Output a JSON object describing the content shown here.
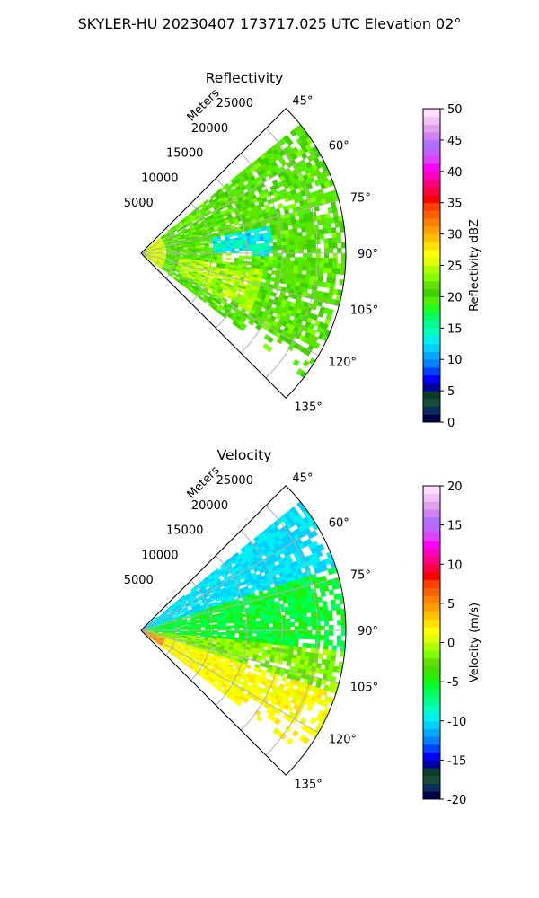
{
  "figure": {
    "title": "SKYLER-HU  20230407  173717.025 UTC Elevation 02°"
  },
  "chart_data": [
    {
      "type": "heatmap",
      "title": "Reflectivity",
      "azimuth_range_deg": [
        45,
        135
      ],
      "azimuth_tick_labels": [
        "45°",
        "60°",
        "75°",
        "90°",
        "105°",
        "120°",
        "135°"
      ],
      "range_unit_label": "Meters",
      "range_tick_labels": [
        "5000",
        "10000",
        "15000",
        "20000",
        "25000"
      ],
      "range_ticks_m": [
        5000,
        10000,
        15000,
        20000,
        25000
      ],
      "max_range_m": 29000,
      "colorbar": {
        "label": "Reflectivity dBZ",
        "range": [
          0,
          50
        ],
        "tick_labels": [
          "0",
          "5",
          "10",
          "15",
          "20",
          "25",
          "30",
          "35",
          "40",
          "45",
          "50"
        ],
        "colors": [
          "#00004c",
          "#0a2f5c",
          "#1a4a3a",
          "#0c3c2a",
          "#0000a0",
          "#0000ff",
          "#0040ff",
          "#0080ff",
          "#00a8ff",
          "#00d0ff",
          "#00f0f0",
          "#00ffc0",
          "#00ff90",
          "#00ff60",
          "#20ff20",
          "#50f000",
          "#40d000",
          "#60e000",
          "#80ff00",
          "#b0ff00",
          "#e0ff00",
          "#ffff00",
          "#ffe000",
          "#ffc000",
          "#ffa000",
          "#ff8000",
          "#ff6000",
          "#ff4000",
          "#ff0000",
          "#ff0040",
          "#ff0080",
          "#ff00c0",
          "#ff00ff",
          "#e040ff",
          "#c060ff",
          "#b070ff",
          "#d080f0",
          "#e0a0f0",
          "#f0c0f8",
          "#ffe0ff"
        ]
      }
    },
    {
      "type": "heatmap",
      "title": "Velocity",
      "azimuth_range_deg": [
        45,
        135
      ],
      "azimuth_tick_labels": [
        "45°",
        "60°",
        "75°",
        "90°",
        "105°",
        "120°",
        "135°"
      ],
      "range_unit_label": "Meters",
      "range_tick_labels": [
        "5000",
        "10000",
        "15000",
        "20000",
        "25000"
      ],
      "range_ticks_m": [
        5000,
        10000,
        15000,
        20000,
        25000
      ],
      "max_range_m": 29000,
      "colorbar": {
        "label": "Velocity (m/s)",
        "range": [
          -20,
          20
        ],
        "tick_labels": [
          "-20",
          "-15",
          "-10",
          "-5",
          "0",
          "5",
          "10",
          "15",
          "20"
        ],
        "colors": [
          "#00004c",
          "#0a2f5c",
          "#1a4a3a",
          "#0c3c2a",
          "#0000a0",
          "#0000ff",
          "#0040ff",
          "#0080ff",
          "#00a8ff",
          "#00d0ff",
          "#00f0f0",
          "#00ffc0",
          "#00ff90",
          "#00ff60",
          "#00ff30",
          "#20f000",
          "#40e000",
          "#60e000",
          "#80ff00",
          "#b0ff00",
          "#e0ff00",
          "#ffff00",
          "#ffe000",
          "#ffc000",
          "#ffa000",
          "#ff8000",
          "#ff6000",
          "#ff4000",
          "#ff0000",
          "#ff0040",
          "#ff0080",
          "#ff00c0",
          "#ff00ff",
          "#e040ff",
          "#c060ff",
          "#b070ff",
          "#d080f0",
          "#e0a0f0",
          "#f0c0f8",
          "#ffe0ff"
        ]
      }
    }
  ]
}
